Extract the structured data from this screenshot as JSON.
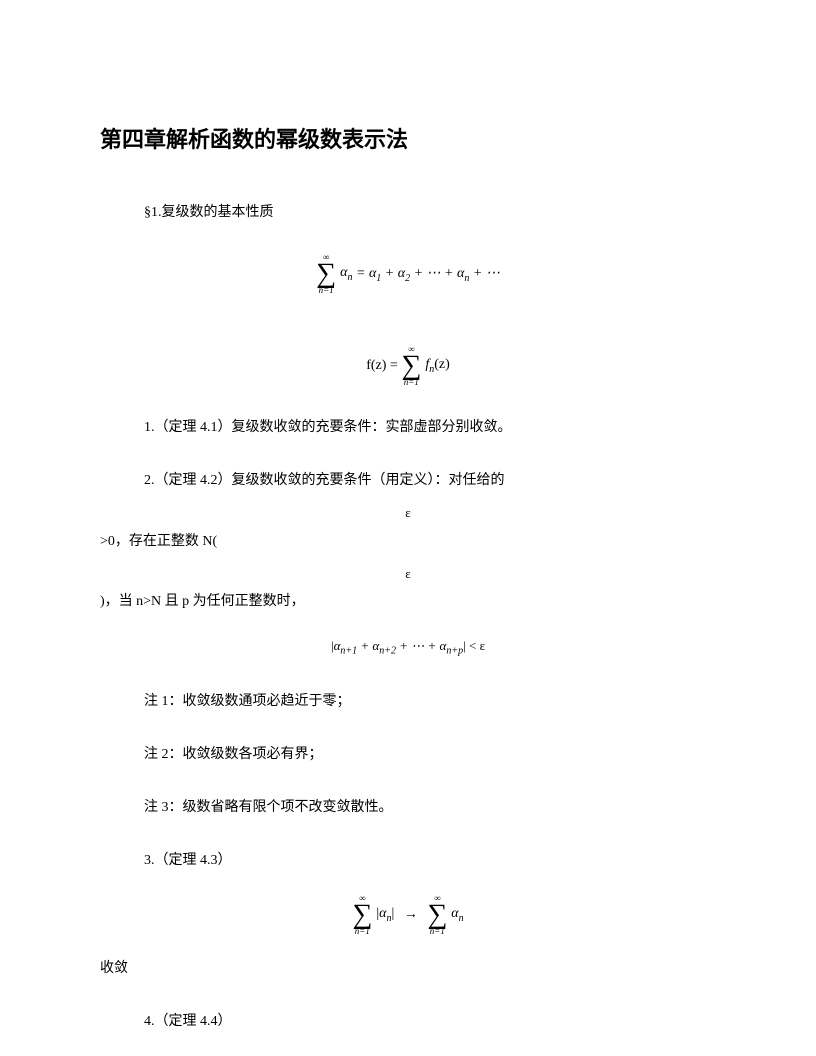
{
  "title": "第四章解析函数的幂级数表示法",
  "section1": "§1.复级数的基本性质",
  "formula1": {
    "sum_top": "∞",
    "sum_bottom": "n=1",
    "term": "α",
    "sub": "n",
    "equals": " = ",
    "rhs_a1": "α",
    "rhs_s1": "1",
    "plus": " + ",
    "rhs_a2": "α",
    "rhs_s2": "2",
    "dots": " + ⋯ + ",
    "rhs_an": "α",
    "rhs_sn": "n",
    "tail": " + ⋯"
  },
  "formula2": {
    "lhs": "f(z) = ",
    "sum_top": "∞",
    "sum_bottom": "n=1",
    "fn": "f",
    "fn_sub": "n",
    "arg": "(z)"
  },
  "p1": "1.（定理 4.1）复级数收敛的充要条件：实部虚部分别收敛。",
  "p2": "2.（定理 4.2）复级数收敛的充要条件（用定义）：对任给的",
  "eps": "ε",
  "p2b": ">0，存在正整数 N(",
  "p2c": ")，当 n>N 且 p 为任何正整数时，",
  "formula3": {
    "open": "|",
    "a": "α",
    "s1": "n+1",
    "plus": " + ",
    "s2": "n+2",
    "dots": " + ⋯ + ",
    "sp": "n+p",
    "close": "|",
    "lt": " < ε"
  },
  "note1": "注 1：收敛级数通项必趋近于零；",
  "note2": "注 2：收敛级数各项必有界；",
  "note3": "注 3：级数省略有限个项不改变敛散性。",
  "p3": "3.（定理 4.3）",
  "formula4": {
    "sum_top": "∞",
    "sum_bottom": "n=1",
    "open": "|",
    "a": "α",
    "sub": "n",
    "close": "|",
    "arrow": "→"
  },
  "converge": "收敛",
  "p4": "4.（定理 4.4）"
}
